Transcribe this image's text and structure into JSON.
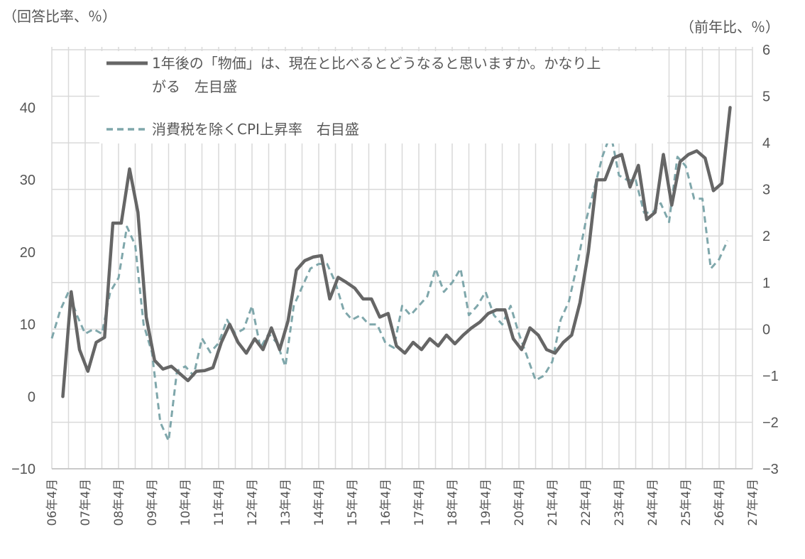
{
  "chart_data": {
    "type": "line",
    "y_left_unit": "（回答比率、％）",
    "y_right_unit": "（前年比、％）",
    "y_left": {
      "ticks": [
        "40",
        "30",
        "20",
        "10",
        "0",
        "−10"
      ],
      "tick_values": [
        40,
        30,
        20,
        10,
        0,
        -10
      ],
      "range": [
        -10,
        48
      ]
    },
    "y_right": {
      "ticks": [
        "6",
        "5",
        "4",
        "3",
        "2",
        "1",
        "0",
        "−1",
        "−2",
        "−3"
      ],
      "tick_values": [
        6,
        5,
        4,
        3,
        2,
        1,
        0,
        -1,
        -2,
        -3
      ],
      "range": [
        -3,
        6
      ]
    },
    "x_ticks": [
      "06年4月",
      "07年4月",
      "08年4月",
      "09年4月",
      "10年4月",
      "11年4月",
      "12年4月",
      "13年4月",
      "14年4月",
      "15年4月",
      "16年4月",
      "17年4月",
      "18年4月",
      "19年4月",
      "20年4月",
      "21年4月",
      "22年4月",
      "23年4月",
      "24年4月",
      "25年4月",
      "26年4月",
      "27年4月"
    ],
    "x_tick_values": [
      2006.25,
      2007.25,
      2008.25,
      2009.25,
      2010.25,
      2011.25,
      2012.25,
      2013.25,
      2014.25,
      2015.25,
      2016.25,
      2017.25,
      2018.25,
      2019.25,
      2020.25,
      2021.25,
      2022.25,
      2023.25,
      2024.25,
      2025.25,
      2026.25,
      2027.25
    ],
    "x_range": [
      2006.25,
      2027.25
    ],
    "grid": true,
    "legend_placement": "top-left",
    "series": [
      {
        "name": "1年後の「物価」は、現在と比べるとどうなると思いますか。かなり上がる　左目盛",
        "legend_line1": "1年後の「物価」は、現在と比べるとどうなると思いますか。かなり上",
        "legend_line2": "がる　左目盛",
        "axis": "left",
        "style": "solid",
        "color": "#666666",
        "points": [
          [
            2006.58,
            0
          ],
          [
            2006.83,
            14.5
          ],
          [
            2007.08,
            6.5
          ],
          [
            2007.33,
            3.5
          ],
          [
            2007.58,
            7.5
          ],
          [
            2007.83,
            8.2
          ],
          [
            2008.08,
            24
          ],
          [
            2008.33,
            24
          ],
          [
            2008.58,
            31.5
          ],
          [
            2008.83,
            25.5
          ],
          [
            2009.08,
            11
          ],
          [
            2009.33,
            5
          ],
          [
            2009.58,
            3.8
          ],
          [
            2009.83,
            4.2
          ],
          [
            2010.08,
            3.2
          ],
          [
            2010.33,
            2.2
          ],
          [
            2010.58,
            3.5
          ],
          [
            2010.83,
            3.6
          ],
          [
            2011.08,
            4
          ],
          [
            2011.33,
            7.5
          ],
          [
            2011.58,
            10
          ],
          [
            2011.83,
            7.5
          ],
          [
            2012.08,
            6
          ],
          [
            2012.33,
            8
          ],
          [
            2012.58,
            6.5
          ],
          [
            2012.83,
            9.5
          ],
          [
            2013.08,
            6.5
          ],
          [
            2013.33,
            10.5
          ],
          [
            2013.58,
            17.5
          ],
          [
            2013.83,
            18.8
          ],
          [
            2014.08,
            19.3
          ],
          [
            2014.33,
            19.5
          ],
          [
            2014.58,
            13.5
          ],
          [
            2014.83,
            16.5
          ],
          [
            2015.08,
            15.8
          ],
          [
            2015.33,
            15
          ],
          [
            2015.58,
            13.5
          ],
          [
            2015.83,
            13.5
          ],
          [
            2016.08,
            11
          ],
          [
            2016.33,
            11.5
          ],
          [
            2016.58,
            7
          ],
          [
            2016.83,
            6
          ],
          [
            2017.08,
            7.5
          ],
          [
            2017.33,
            6.5
          ],
          [
            2017.58,
            8
          ],
          [
            2017.83,
            7
          ],
          [
            2018.08,
            8.5
          ],
          [
            2018.33,
            7.3
          ],
          [
            2018.58,
            8.5
          ],
          [
            2018.83,
            9.5
          ],
          [
            2019.08,
            10.3
          ],
          [
            2019.33,
            11.5
          ],
          [
            2019.58,
            12
          ],
          [
            2019.83,
            12
          ],
          [
            2020.08,
            8
          ],
          [
            2020.33,
            6.5
          ],
          [
            2020.58,
            9.5
          ],
          [
            2020.83,
            8.5
          ],
          [
            2021.08,
            6.5
          ],
          [
            2021.33,
            6
          ],
          [
            2021.58,
            7.5
          ],
          [
            2021.83,
            8.5
          ],
          [
            2022.08,
            13
          ],
          [
            2022.33,
            20
          ],
          [
            2022.58,
            30
          ],
          [
            2022.83,
            30
          ],
          [
            2023.08,
            33
          ],
          [
            2023.33,
            33.5
          ],
          [
            2023.58,
            29
          ],
          [
            2023.83,
            32
          ],
          [
            2024.08,
            24.5
          ],
          [
            2024.33,
            25.5
          ],
          [
            2024.58,
            33.5
          ],
          [
            2024.83,
            26.5
          ],
          [
            2025.08,
            32.5
          ],
          [
            2025.33,
            33.5
          ],
          [
            2025.58,
            34
          ],
          [
            2025.83,
            33
          ],
          [
            2026.08,
            28.5
          ],
          [
            2026.33,
            29.5
          ],
          [
            2026.58,
            40
          ]
        ]
      },
      {
        "name": "消費税を除くCPI上昇率　右目盛",
        "axis": "right",
        "style": "dashed",
        "color": "#7fa7ab",
        "points": [
          [
            2006.25,
            -0.2
          ],
          [
            2006.5,
            0.4
          ],
          [
            2006.75,
            0.8
          ],
          [
            2007.0,
            0.3
          ],
          [
            2007.25,
            -0.1
          ],
          [
            2007.5,
            0
          ],
          [
            2007.75,
            -0.1
          ],
          [
            2008.0,
            0.8
          ],
          [
            2008.25,
            1.1
          ],
          [
            2008.5,
            2.2
          ],
          [
            2008.75,
            1.8
          ],
          [
            2009.0,
            0.1
          ],
          [
            2009.25,
            -0.5
          ],
          [
            2009.5,
            -2.0
          ],
          [
            2009.75,
            -2.4
          ],
          [
            2010.0,
            -0.9
          ],
          [
            2010.25,
            -0.8
          ],
          [
            2010.5,
            -1.0
          ],
          [
            2010.75,
            -0.2
          ],
          [
            2011.0,
            -0.5
          ],
          [
            2011.25,
            -0.3
          ],
          [
            2011.5,
            0.2
          ],
          [
            2011.75,
            -0.1
          ],
          [
            2012.0,
            0
          ],
          [
            2012.25,
            0.5
          ],
          [
            2012.5,
            -0.4
          ],
          [
            2012.75,
            -0.1
          ],
          [
            2013.0,
            -0.3
          ],
          [
            2013.25,
            -0.8
          ],
          [
            2013.5,
            0.5
          ],
          [
            2013.75,
            0.9
          ],
          [
            2014.0,
            1.3
          ],
          [
            2014.25,
            1.4
          ],
          [
            2014.5,
            1.4
          ],
          [
            2014.75,
            1.0
          ],
          [
            2015.0,
            0.4
          ],
          [
            2015.25,
            0.2
          ],
          [
            2015.5,
            0.3
          ],
          [
            2015.75,
            0.1
          ],
          [
            2016.0,
            0.1
          ],
          [
            2016.25,
            -0.3
          ],
          [
            2016.5,
            -0.4
          ],
          [
            2016.75,
            0.5
          ],
          [
            2017.0,
            0.3
          ],
          [
            2017.25,
            0.5
          ],
          [
            2017.5,
            0.7
          ],
          [
            2017.75,
            1.3
          ],
          [
            2018.0,
            0.8
          ],
          [
            2018.25,
            1.0
          ],
          [
            2018.5,
            1.3
          ],
          [
            2018.75,
            0.3
          ],
          [
            2019.0,
            0.5
          ],
          [
            2019.25,
            0.8
          ],
          [
            2019.5,
            0.3
          ],
          [
            2019.75,
            0.1
          ],
          [
            2020.0,
            0.5
          ],
          [
            2020.25,
            -0.1
          ],
          [
            2020.5,
            -0.6
          ],
          [
            2020.75,
            -1.1
          ],
          [
            2021.0,
            -1.0
          ],
          [
            2021.25,
            -0.7
          ],
          [
            2021.5,
            0.2
          ],
          [
            2021.75,
            0.6
          ],
          [
            2022.0,
            1.4
          ],
          [
            2022.25,
            2.3
          ],
          [
            2022.5,
            3.0
          ],
          [
            2022.75,
            3.7
          ],
          [
            2023.0,
            4.2
          ],
          [
            2023.25,
            3.3
          ],
          [
            2023.5,
            3.2
          ],
          [
            2023.75,
            3.2
          ],
          [
            2024.0,
            2.5
          ],
          [
            2024.25,
            2.5
          ],
          [
            2024.5,
            2.7
          ],
          [
            2024.75,
            2.3
          ],
          [
            2025.0,
            3.7
          ],
          [
            2025.25,
            3.5
          ],
          [
            2025.5,
            2.8
          ],
          [
            2025.75,
            2.8
          ],
          [
            2026.0,
            1.3
          ],
          [
            2026.25,
            1.5
          ],
          [
            2026.5,
            1.9
          ]
        ]
      }
    ]
  }
}
